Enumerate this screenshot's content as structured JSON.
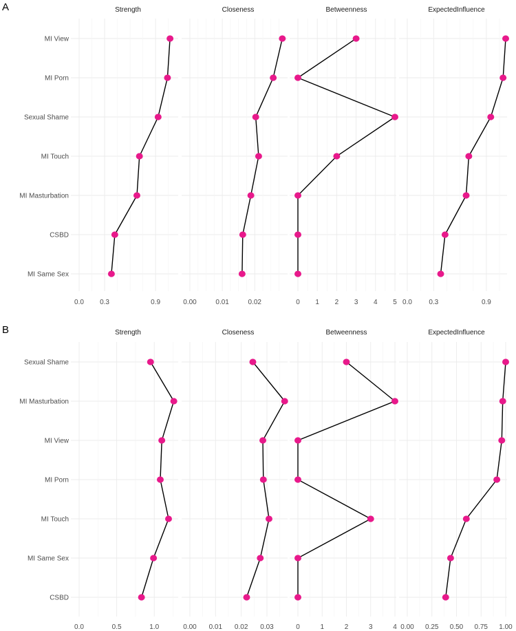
{
  "colors": {
    "point": "#e8198b",
    "line": "#000000",
    "grid": "#ebebeb",
    "background": "#ffffff"
  },
  "chart_data": [
    {
      "panel": "A",
      "type": "line",
      "categories": [
        "MI View",
        "MI Porn",
        "Sexual Shame",
        "MI Touch",
        "MI Masturbation",
        "CSBD",
        "MI Same Sex"
      ],
      "facets": [
        {
          "title": "Strength",
          "xlim": [
            0,
            1.15
          ],
          "ticks": [
            0.0,
            0.3,
            0.9
          ],
          "tick_labels": [
            "0.0",
            "0.3",
            "0.9"
          ],
          "minor_step": 0.15,
          "values": [
            1.07,
            1.04,
            0.93,
            0.71,
            0.68,
            0.42,
            0.38
          ]
        },
        {
          "title": "Closeness",
          "xlim": [
            0,
            0.0297
          ],
          "ticks": [
            0.0,
            0.01,
            0.02
          ],
          "tick_labels": [
            "0.00",
            "0.01",
            "0.02"
          ],
          "minor_step": 0.0025,
          "values": [
            0.0285,
            0.0257,
            0.0203,
            0.0212,
            0.0188,
            0.0163,
            0.0161
          ]
        },
        {
          "title": "Betweenness",
          "xlim": [
            0,
            5
          ],
          "ticks": [
            0,
            1,
            2,
            3,
            4,
            5
          ],
          "tick_labels": [
            "0",
            "1",
            "2",
            "3",
            "4",
            "5"
          ],
          "minor_step": 0.5,
          "values": [
            3,
            0,
            5,
            2,
            0,
            0,
            0
          ]
        },
        {
          "title": "ExpectedInfluence",
          "xlim": [
            0,
            1.12
          ],
          "ticks": [
            0.0,
            0.3,
            0.9
          ],
          "tick_labels": [
            "0.0",
            "0.3",
            "0.9"
          ],
          "minor_step": 0.15,
          "values": [
            1.12,
            1.09,
            0.95,
            0.7,
            0.67,
            0.43,
            0.38
          ]
        }
      ]
    },
    {
      "panel": "B",
      "type": "line",
      "categories": [
        "Sexual Shame",
        "MI Masturbation",
        "MI View",
        "MI Porn",
        "MI Touch",
        "MI Same Sex",
        "CSBD"
      ],
      "facets": [
        {
          "title": "Strength",
          "xlim": [
            0,
            1.3
          ],
          "ticks": [
            0.0,
            0.5,
            1.0
          ],
          "tick_labels": [
            "0.0",
            "0.5",
            "1.0"
          ],
          "minor_step": 0.25,
          "values": [
            0.95,
            1.26,
            1.1,
            1.08,
            1.19,
            0.99,
            0.83
          ]
        },
        {
          "title": "Closeness",
          "xlim": [
            0,
            0.0375
          ],
          "ticks": [
            0.0,
            0.01,
            0.02,
            0.03
          ],
          "tick_labels": [
            "0.00",
            "0.01",
            "0.02",
            "0.03"
          ],
          "minor_step": 0.005,
          "values": [
            0.0245,
            0.0369,
            0.0284,
            0.0286,
            0.0308,
            0.0274,
            0.0221
          ]
        },
        {
          "title": "Betweenness",
          "xlim": [
            0,
            4
          ],
          "ticks": [
            0,
            1,
            2,
            3,
            4
          ],
          "tick_labels": [
            "0",
            "1",
            "2",
            "3",
            "4"
          ],
          "minor_step": 0.5,
          "values": [
            2,
            4,
            0,
            0,
            3,
            0,
            0
          ]
        },
        {
          "title": "ExpectedInfluence",
          "xlim": [
            0,
            1.0
          ],
          "ticks": [
            0.0,
            0.25,
            0.5,
            0.75,
            1.0
          ],
          "tick_labels": [
            "0.00",
            "0.25",
            "0.50",
            "0.75",
            "1.00"
          ],
          "minor_step": 0.125,
          "values": [
            1.0,
            0.97,
            0.96,
            0.91,
            0.6,
            0.44,
            0.39
          ]
        }
      ]
    }
  ]
}
